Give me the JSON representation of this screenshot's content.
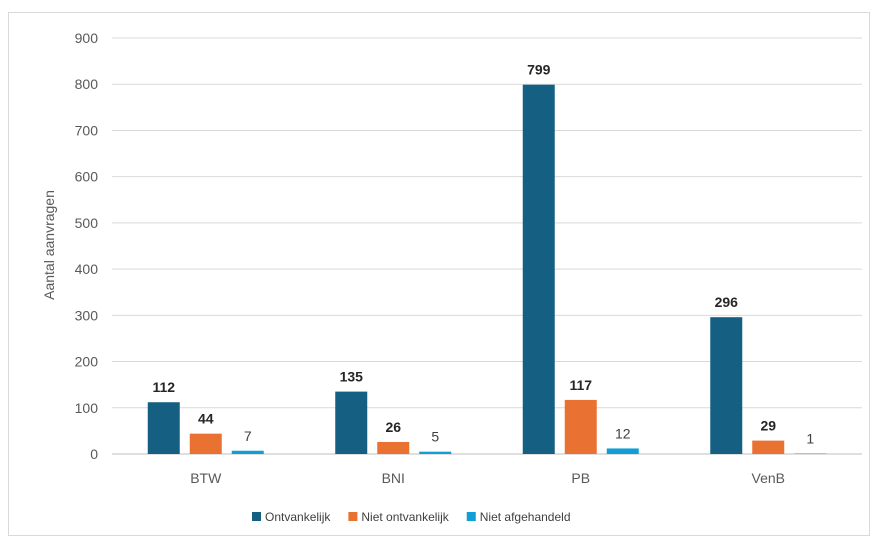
{
  "chart_data": {
    "type": "bar",
    "categories": [
      "BTW",
      "BNI",
      "PB",
      "VenB"
    ],
    "series": [
      {
        "name": "Ontvankelijk",
        "values": [
          112,
          135,
          799,
          296
        ],
        "color": "#156082",
        "label_style": "bold"
      },
      {
        "name": "Niet ontvankelijk",
        "values": [
          44,
          26,
          117,
          29
        ],
        "color": "#E97132",
        "label_style": "bold"
      },
      {
        "name": "Niet afgehandeld",
        "values": [
          7,
          5,
          12,
          1
        ],
        "color": "#0F9ED5",
        "label_style": "plain"
      }
    ],
    "ylabel": "Aantal aanvragen",
    "ylim": [
      0,
      900
    ],
    "yticks": [
      0,
      100,
      200,
      300,
      400,
      500,
      600,
      700,
      800,
      900
    ],
    "grid": true,
    "legend_position": "bottom"
  }
}
